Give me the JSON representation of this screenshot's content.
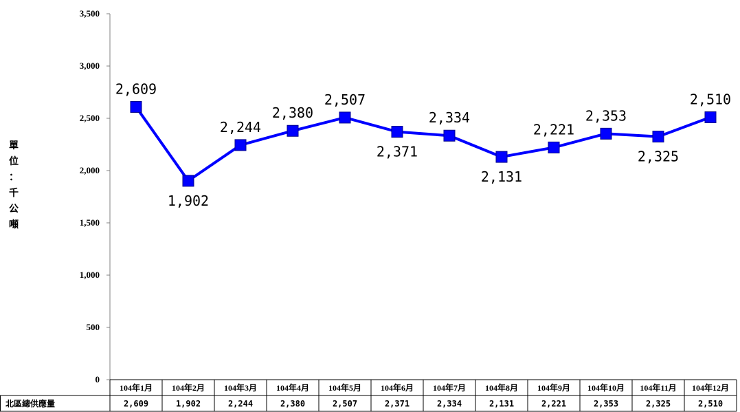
{
  "chart_data": {
    "type": "line",
    "title": "",
    "xlabel": "",
    "ylabel": "單位：千公噸",
    "ylim": [
      0,
      3500
    ],
    "yticks": [
      0,
      500,
      1000,
      1500,
      2000,
      2500,
      3000,
      3500
    ],
    "ytick_labels": [
      "0",
      "500",
      "1,000",
      "1,500",
      "2,000",
      "2,500",
      "3,000",
      "3,500"
    ],
    "grid": false,
    "legend": "none",
    "categories": [
      "104年1月",
      "104年2月",
      "104年3月",
      "104年4月",
      "104年5月",
      "104年6月",
      "104年7月",
      "104年8月",
      "104年9月",
      "104年10月",
      "104年11月",
      "104年12月"
    ],
    "series": [
      {
        "name": "北區總供應量",
        "color": "#0000ff",
        "marker": "square",
        "values": [
          2609,
          1902,
          2244,
          2380,
          2507,
          2371,
          2334,
          2131,
          2221,
          2353,
          2325,
          2510
        ],
        "labels": [
          "2,609",
          "1,902",
          "2,244",
          "2,380",
          "2,507",
          "2,371",
          "2,334",
          "2,131",
          "2,221",
          "2,353",
          "2,325",
          "2,510"
        ]
      }
    ],
    "table": {
      "row_header": "北區總供應量",
      "cells": [
        "2,609",
        "1,902",
        "2,244",
        "2,380",
        "2,507",
        "2,371",
        "2,334",
        "2,131",
        "2,221",
        "2,353",
        "2,325",
        "2,510"
      ]
    }
  }
}
